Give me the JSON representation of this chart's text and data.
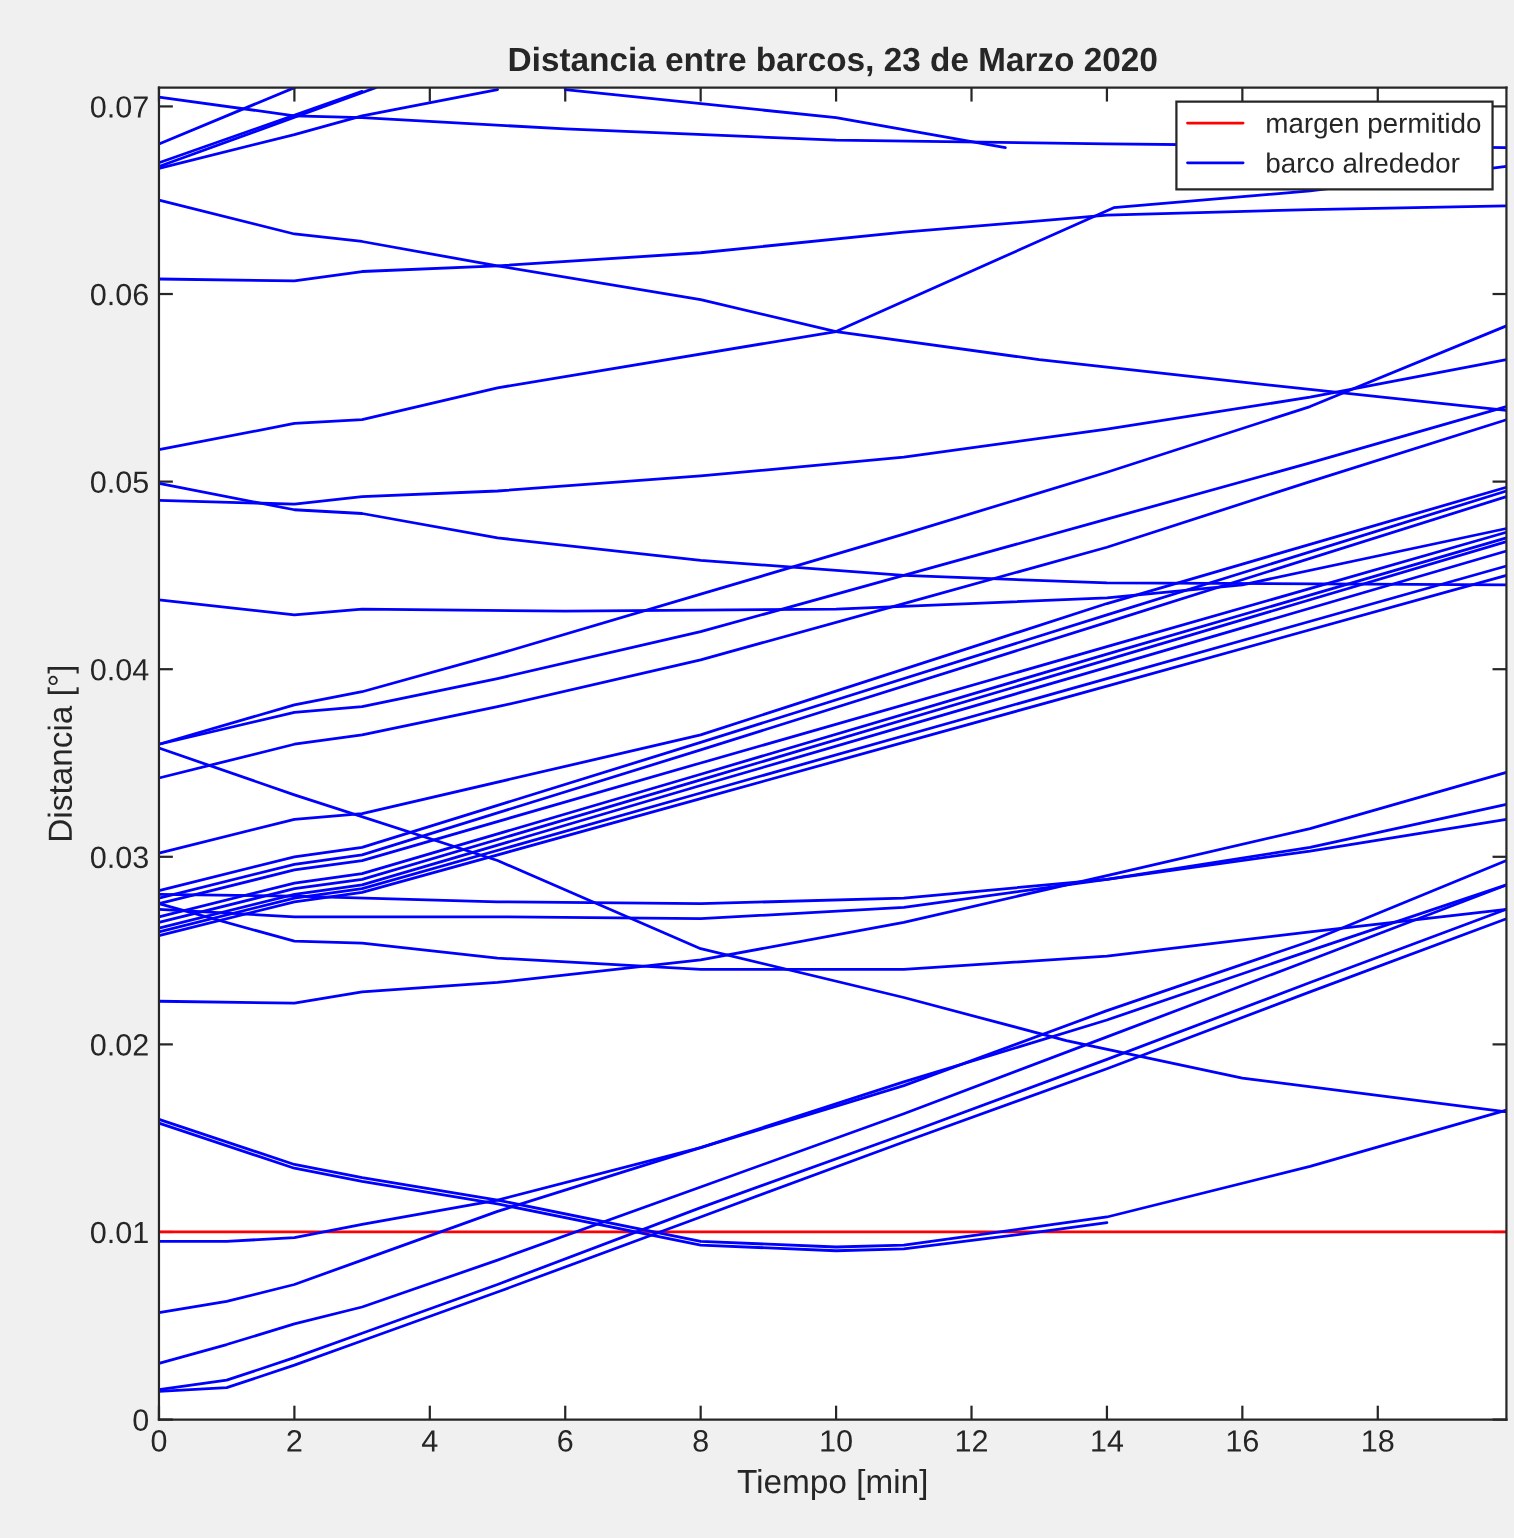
{
  "chart_data": {
    "type": "line",
    "title": "Distancia entre barcos, 23 de Marzo 2020",
    "xlabel": "Tiempo [min]",
    "ylabel": "Distancia [°]",
    "xlim": [
      0,
      19.9
    ],
    "ylim": [
      0,
      0.071
    ],
    "xticks": [
      0,
      2,
      4,
      6,
      8,
      10,
      12,
      14,
      16,
      18
    ],
    "yticks": [
      0,
      0.01,
      0.02,
      0.03,
      0.04,
      0.05,
      0.06,
      0.07
    ],
    "grid": false,
    "legend": "top right",
    "line_style": "solid",
    "marker": "none",
    "ref_lines": [
      {
        "axis": "y",
        "value": 0.01,
        "label": "margen permitido",
        "color": "#ff0000",
        "line_style": "solid"
      }
    ],
    "series": [
      {
        "name": "barco alrededor",
        "color": "#0000ff",
        "x": [
          0,
          1,
          2,
          3,
          5,
          8,
          11,
          14,
          17,
          19.9
        ],
        "values": [
          0.0015,
          0.0017,
          0.0029,
          0.0042,
          0.0068,
          0.0108,
          0.0148,
          0.0187,
          0.0228,
          0.0267
        ]
      },
      {
        "color": "#0000ff",
        "x": [
          0,
          1,
          2,
          3,
          5,
          8,
          11,
          14,
          17,
          19.9
        ],
        "values": [
          0.0016,
          0.0021,
          0.0033,
          0.0046,
          0.0072,
          0.0113,
          0.0152,
          0.0192,
          0.0233,
          0.0272
        ]
      },
      {
        "color": "#0000ff",
        "x": [
          0,
          1,
          2,
          3,
          5,
          8,
          11,
          14,
          17,
          19.9
        ],
        "values": [
          0.003,
          0.004,
          0.0051,
          0.006,
          0.0085,
          0.0124,
          0.0163,
          0.0204,
          0.0245,
          0.0285
        ]
      },
      {
        "color": "#0000ff",
        "x": [
          0,
          1,
          2,
          3,
          5,
          8,
          11,
          14,
          17,
          19.9
        ],
        "values": [
          0.0057,
          0.0063,
          0.0072,
          0.0085,
          0.0111,
          0.0145,
          0.0178,
          0.0218,
          0.0255,
          0.0298
        ]
      },
      {
        "color": "#0000ff",
        "x": [
          0,
          1,
          2,
          3,
          5,
          8,
          11,
          14,
          17,
          19.9
        ],
        "values": [
          0.0095,
          0.0095,
          0.0097,
          0.0104,
          0.0117,
          0.0145,
          0.018,
          0.0213,
          0.025,
          0.0285
        ]
      },
      {
        "color": "#0000ff",
        "x": [
          0,
          2,
          3,
          5,
          8,
          10,
          11,
          13,
          14,
          17,
          19.9
        ],
        "values": [
          0.016,
          0.0136,
          0.0129,
          0.0117,
          0.0095,
          0.0092,
          0.0093,
          0.0103,
          0.0108,
          0.0135,
          0.0165
        ]
      },
      {
        "color": "#0000ff",
        "x": [
          0,
          2,
          3,
          5,
          8,
          10,
          11,
          13,
          14
        ],
        "values": [
          0.0158,
          0.0134,
          0.0127,
          0.0115,
          0.0093,
          0.009,
          0.0091,
          0.01,
          0.0105
        ]
      },
      {
        "color": "#0000ff",
        "x": [
          0,
          2,
          5,
          8,
          11,
          13.4,
          16,
          19.9
        ],
        "values": [
          0.0358,
          0.0333,
          0.0298,
          0.0251,
          0.0225,
          0.0202,
          0.0182,
          0.0164
        ]
      },
      {
        "color": "#0000ff",
        "x": [
          0,
          2,
          3,
          5,
          8,
          11,
          14,
          17,
          19.9
        ],
        "values": [
          0.0223,
          0.0222,
          0.0228,
          0.0233,
          0.0245,
          0.0265,
          0.029,
          0.0315,
          0.0345
        ]
      },
      {
        "color": "#0000ff",
        "x": [
          0,
          2,
          5,
          8,
          11,
          14,
          17,
          19.9
        ],
        "values": [
          0.028,
          0.0279,
          0.0276,
          0.0275,
          0.0278,
          0.0288,
          0.0305,
          0.0328
        ]
      },
      {
        "color": "#0000ff",
        "x": [
          0,
          2,
          5,
          8,
          11,
          14,
          17,
          19.9
        ],
        "values": [
          0.0272,
          0.0268,
          0.0268,
          0.0267,
          0.0273,
          0.0288,
          0.0303,
          0.032
        ]
      },
      {
        "color": "#0000ff",
        "x": [
          0,
          2,
          3,
          5,
          8,
          11,
          14,
          17,
          19.9
        ],
        "values": [
          0.0275,
          0.0255,
          0.0254,
          0.0246,
          0.024,
          0.024,
          0.0247,
          0.026,
          0.0272
        ]
      },
      {
        "color": "#0000ff",
        "x": [
          0,
          2,
          3,
          8,
          14,
          19.9
        ],
        "values": [
          0.0258,
          0.0276,
          0.0281,
          0.0331,
          0.0391,
          0.045
        ]
      },
      {
        "color": "#0000ff",
        "x": [
          0,
          2,
          3,
          8,
          14,
          19.9
        ],
        "values": [
          0.026,
          0.0278,
          0.0283,
          0.0334,
          0.0395,
          0.0455
        ]
      },
      {
        "color": "#0000ff",
        "x": [
          0,
          2,
          3,
          8,
          14,
          19.9
        ],
        "values": [
          0.0262,
          0.028,
          0.0285,
          0.0338,
          0.0401,
          0.0463
        ]
      },
      {
        "color": "#0000ff",
        "x": [
          0,
          2,
          3,
          8,
          14,
          19.9
        ],
        "values": [
          0.0265,
          0.0283,
          0.0288,
          0.0341,
          0.0405,
          0.0468
        ]
      },
      {
        "color": "#0000ff",
        "x": [
          0,
          2,
          3,
          8,
          14,
          19.9
        ],
        "values": [
          0.0268,
          0.0286,
          0.0291,
          0.0344,
          0.0408,
          0.047
        ]
      },
      {
        "color": "#0000ff",
        "x": [
          0,
          2,
          3,
          8,
          14,
          19.9
        ],
        "values": [
          0.0275,
          0.0293,
          0.0298,
          0.035,
          0.0412,
          0.0473
        ]
      },
      {
        "color": "#0000ff",
        "x": [
          0,
          2,
          3,
          8,
          14,
          19.9
        ],
        "values": [
          0.0278,
          0.0296,
          0.0301,
          0.0357,
          0.0425,
          0.0492
        ]
      },
      {
        "color": "#0000ff",
        "x": [
          0,
          2,
          3,
          8,
          14,
          19.9
        ],
        "values": [
          0.0282,
          0.03,
          0.0305,
          0.0361,
          0.0429,
          0.0495
        ]
      },
      {
        "color": "#0000ff",
        "x": [
          0,
          2,
          3,
          8,
          14,
          19.9
        ],
        "values": [
          0.0302,
          0.032,
          0.0323,
          0.0365,
          0.0435,
          0.0497
        ]
      },
      {
        "color": "#0000ff",
        "x": [
          0,
          2,
          3,
          5,
          8,
          11,
          14,
          17,
          19.9
        ],
        "values": [
          0.036,
          0.0381,
          0.0388,
          0.0408,
          0.044,
          0.0472,
          0.0505,
          0.054,
          0.0583
        ]
      },
      {
        "color": "#0000ff",
        "x": [
          0,
          2,
          3,
          5,
          8,
          11,
          14,
          17,
          19.9
        ],
        "values": [
          0.036,
          0.0377,
          0.038,
          0.0395,
          0.042,
          0.045,
          0.048,
          0.051,
          0.054
        ]
      },
      {
        "color": "#0000ff",
        "x": [
          0,
          2,
          3,
          5,
          8,
          11,
          14,
          17,
          19.9
        ],
        "values": [
          0.0342,
          0.036,
          0.0365,
          0.038,
          0.0405,
          0.0435,
          0.0465,
          0.05,
          0.0533
        ]
      },
      {
        "color": "#0000ff",
        "x": [
          0,
          2,
          3,
          6,
          10,
          14,
          16,
          19.9
        ],
        "values": [
          0.0437,
          0.0429,
          0.0432,
          0.0431,
          0.0432,
          0.0438,
          0.0445,
          0.0475
        ]
      },
      {
        "color": "#0000ff",
        "x": [
          0,
          2,
          3,
          5,
          8,
          11,
          14,
          19.9
        ],
        "values": [
          0.0499,
          0.0485,
          0.0483,
          0.047,
          0.0458,
          0.045,
          0.0446,
          0.0445
        ]
      },
      {
        "color": "#0000ff",
        "x": [
          0,
          2,
          3,
          5,
          8,
          11,
          14,
          17,
          19.9
        ],
        "values": [
          0.049,
          0.0488,
          0.0492,
          0.0495,
          0.0503,
          0.0513,
          0.0528,
          0.0545,
          0.0565
        ]
      },
      {
        "color": "#0000ff",
        "x": [
          0,
          2,
          3,
          5,
          10,
          14.1,
          17,
          19.9
        ],
        "values": [
          0.0517,
          0.0531,
          0.0533,
          0.055,
          0.058,
          0.0646,
          0.0655,
          0.0668
        ]
      },
      {
        "color": "#0000ff",
        "x": [
          0,
          2,
          3,
          5,
          8,
          11,
          14,
          17,
          19.9
        ],
        "values": [
          0.0608,
          0.0607,
          0.0612,
          0.0615,
          0.0622,
          0.0633,
          0.0642,
          0.0645,
          0.0647
        ]
      },
      {
        "color": "#0000ff",
        "x": [
          0,
          2,
          3,
          5,
          8,
          10,
          13,
          16,
          19.9
        ],
        "values": [
          0.065,
          0.0632,
          0.0628,
          0.0615,
          0.0597,
          0.058,
          0.0565,
          0.0553,
          0.0538
        ]
      },
      {
        "color": "#0000ff",
        "x": [
          0,
          2,
          3,
          6,
          10,
          14,
          19.9
        ],
        "values": [
          0.0705,
          0.0695,
          0.0694,
          0.0688,
          0.0682,
          0.068,
          0.0678
        ]
      },
      {
        "color": "#0000ff",
        "x": [
          6,
          10,
          12.5
        ],
        "values": [
          0.0709,
          0.0694,
          0.0678
        ]
      },
      {
        "color": "#0000ff",
        "x": [
          0,
          2
        ],
        "values": [
          0.068,
          0.071
        ]
      },
      {
        "color": "#0000ff",
        "x": [
          0,
          3
        ],
        "values": [
          0.067,
          0.0708
        ]
      },
      {
        "color": "#0000ff",
        "x": [
          0,
          3.2
        ],
        "values": [
          0.0668,
          0.071
        ]
      },
      {
        "color": "#0000ff",
        "x": [
          0,
          2,
          3,
          5
        ],
        "values": [
          0.0667,
          0.0685,
          0.0695,
          0.0709
        ]
      }
    ]
  }
}
